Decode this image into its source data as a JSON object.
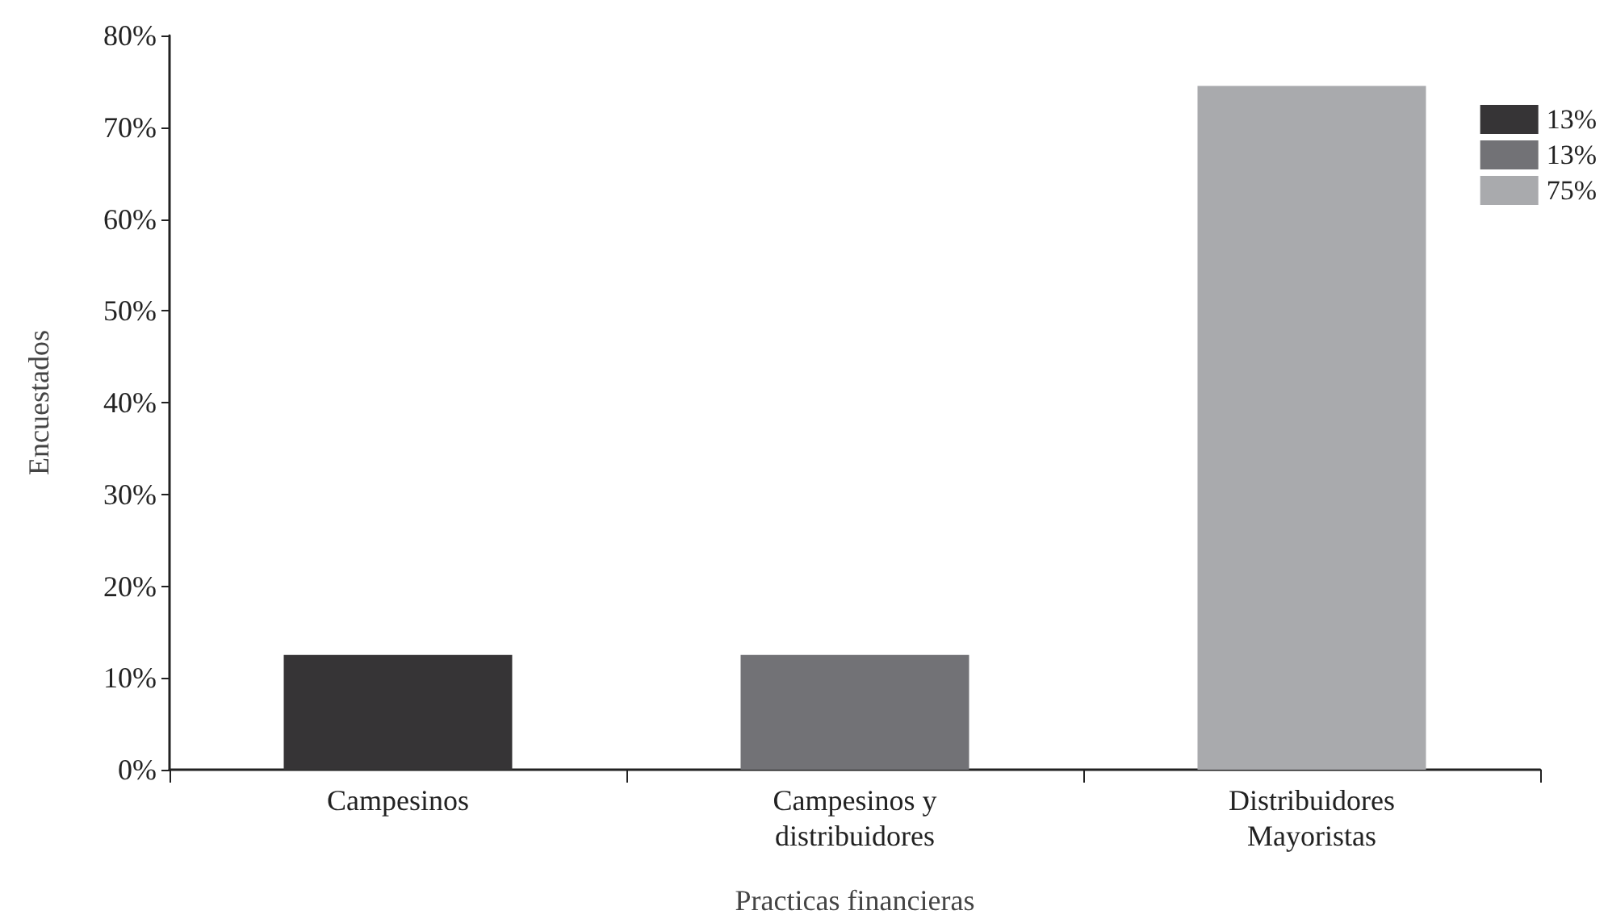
{
  "chart_data": {
    "type": "bar",
    "xlabel": "Practicas financieras",
    "ylabel": "Encuestados",
    "categories": [
      "Campesinos",
      "Campesinos y\ndistribuidores",
      "Distribuidores\nMayoristas"
    ],
    "series": [
      {
        "name": "13%",
        "color": "#363436",
        "values": [
          12.5,
          null,
          null
        ]
      },
      {
        "name": "13%",
        "color": "#727276",
        "values": [
          null,
          12.5,
          null
        ]
      },
      {
        "name": "75%",
        "color": "#a9aaad",
        "values": [
          null,
          null,
          74.5
        ]
      }
    ],
    "stacked": true,
    "ylim": [
      0,
      80
    ],
    "yticks": [
      {
        "value": 0,
        "label": "0%"
      },
      {
        "value": 10,
        "label": "10%"
      },
      {
        "value": 20,
        "label": "20%"
      },
      {
        "value": 30,
        "label": "30%"
      },
      {
        "value": 40,
        "label": "40%"
      },
      {
        "value": 50,
        "label": "50%"
      },
      {
        "value": 60,
        "label": "60%"
      },
      {
        "value": 70,
        "label": "70%"
      },
      {
        "value": 80,
        "label": "80%"
      }
    ],
    "grid": false,
    "legend": "top right"
  }
}
